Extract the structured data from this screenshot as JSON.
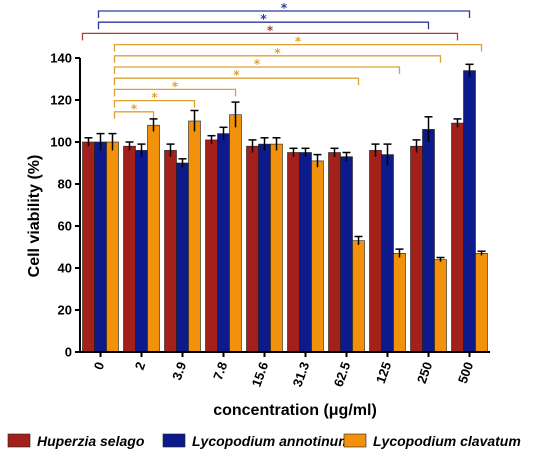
{
  "chart_data": {
    "type": "bar",
    "title": "",
    "xlabel": "concentration (μg/ml)",
    "ylabel": "Cell viability (%)",
    "ylim": [
      0,
      140
    ],
    "yticks": [
      0,
      20,
      40,
      60,
      80,
      100,
      120,
      140
    ],
    "grid": false,
    "legend_position": "bottom",
    "categories": [
      "0",
      "2",
      "3.9",
      "7.8",
      "15.6",
      "31.3",
      "62.5",
      "125",
      "250",
      "500"
    ],
    "series": [
      {
        "name": "Huperzia selago",
        "color": "#A3201B",
        "values": [
          100,
          98,
          96,
          101,
          98,
          95,
          95,
          96,
          98,
          109
        ],
        "errors": [
          2,
          2,
          3,
          2,
          3,
          2,
          2,
          3,
          3,
          2
        ]
      },
      {
        "name": "Lycopodium annotinum",
        "color": "#0C1A8C",
        "values": [
          100,
          96,
          90,
          104,
          99,
          95,
          93,
          94,
          106,
          134
        ],
        "errors": [
          4,
          3,
          2,
          3,
          3,
          2,
          2,
          5,
          6,
          3
        ]
      },
      {
        "name": "Lycopodium clavatum",
        "color": "#F2920C",
        "values": [
          100,
          108,
          110,
          113,
          99,
          91,
          53,
          47,
          44,
          47
        ],
        "errors": [
          4,
          3,
          5,
          6,
          3,
          3,
          2,
          2,
          1,
          1
        ]
      }
    ],
    "significance": [
      {
        "series": "Lycopodium annotinum",
        "from": "0",
        "to": "500",
        "label": "*",
        "color": "#2B3A9E"
      },
      {
        "series": "Lycopodium annotinum",
        "from": "0",
        "to": "250",
        "label": "*",
        "color": "#2B3A9E"
      },
      {
        "series": "Huperzia selago",
        "from": "0",
        "to": "500",
        "label": "*",
        "color": "#B03A2E"
      },
      {
        "series": "Lycopodium clavatum",
        "from": "0",
        "to": "500",
        "label": "*",
        "color": "#E0A030"
      },
      {
        "series": "Lycopodium clavatum",
        "from": "0",
        "to": "250",
        "label": "*",
        "color": "#E0A030"
      },
      {
        "series": "Lycopodium clavatum",
        "from": "0",
        "to": "125",
        "label": "*",
        "color": "#E0A030"
      },
      {
        "series": "Lycopodium clavatum",
        "from": "0",
        "to": "62.5",
        "label": "*",
        "color": "#E0A030"
      },
      {
        "series": "Lycopodium clavatum",
        "from": "0",
        "to": "7.8",
        "label": "*",
        "color": "#E0A030"
      },
      {
        "series": "Lycopodium clavatum",
        "from": "0",
        "to": "3.9",
        "label": "*",
        "color": "#E0A030"
      },
      {
        "series": "Lycopodium clavatum",
        "from": "0",
        "to": "2",
        "label": "*",
        "color": "#E0A030"
      }
    ]
  }
}
